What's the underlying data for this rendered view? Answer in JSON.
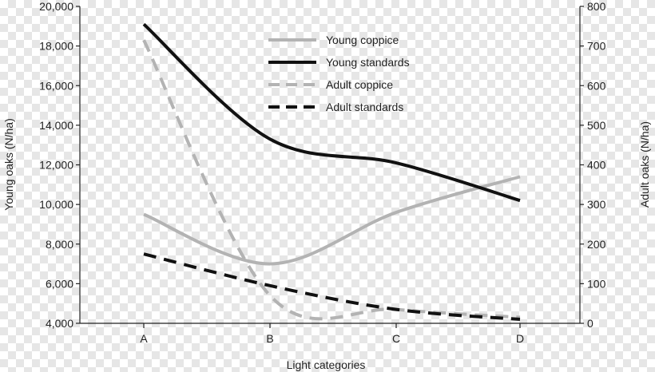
{
  "chart_data": {
    "type": "line",
    "categories": [
      "A",
      "B",
      "C",
      "D"
    ],
    "xlabel": "Light categories",
    "ylabel_left": "Young oaks (N/ha)",
    "ylabel_right": "Adult oaks (N/ha)",
    "ylim_left": [
      4000,
      20000
    ],
    "ylim_right": [
      0,
      800
    ],
    "left_ticks": [
      "4,000",
      "6,000",
      "8,000",
      "10,000",
      "12,000",
      "14,000",
      "16,000",
      "18,000",
      "20,000"
    ],
    "right_ticks": [
      "0",
      "100",
      "200",
      "300",
      "400",
      "500",
      "600",
      "700",
      "800"
    ],
    "grid": false,
    "legend_position": "top-center",
    "series": [
      {
        "name": "Young coppice",
        "axis": "left",
        "values": [
          9500,
          7000,
          9600,
          11400
        ],
        "color": "#b3b3b3",
        "dash": "solid"
      },
      {
        "name": "Young standards",
        "axis": "left",
        "values": [
          19100,
          13300,
          12100,
          10200
        ],
        "color": "#111111",
        "dash": "solid"
      },
      {
        "name": "Adult coppice",
        "axis": "right",
        "values": [
          715,
          70,
          35,
          15
        ],
        "color": "#b3b3b3",
        "dash": "dashed"
      },
      {
        "name": "Adult standards",
        "axis": "right",
        "values": [
          175,
          95,
          35,
          10
        ],
        "color": "#111111",
        "dash": "dashed"
      }
    ]
  }
}
